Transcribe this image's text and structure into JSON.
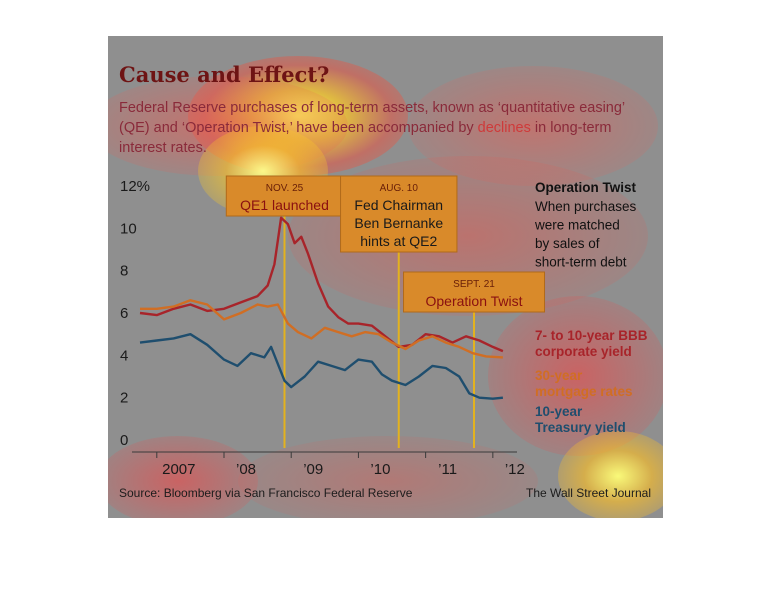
{
  "header": {
    "title": "Cause and Effect?",
    "subtitle_pre": "Federal Reserve purchases of long-term assets, known as ‘quantitative easing’ (QE) and ‘Operation Twist,’ have been accompanied by ",
    "subtitle_highlight": "declines",
    "subtitle_post": " in long-term interest rates."
  },
  "note": {
    "heading": "Operation Twist",
    "lines": [
      "When purchases",
      "were matched",
      "by sales of",
      "short-term debt"
    ]
  },
  "footer": {
    "source": "Source: Bloomberg via San Francisco Federal Reserve",
    "credit": "The Wall Street Journal"
  },
  "colors": {
    "corporate": "#a8242a",
    "mortgage": "#d06e24",
    "treasury": "#1f4e6e",
    "event_line": "#e3b21e"
  },
  "heatmap_overlay": true,
  "chart_data": {
    "type": "line",
    "ylim": [
      0,
      12
    ],
    "y_ticks": [
      0,
      2,
      4,
      6,
      8,
      10,
      12
    ],
    "y_tick_labels": [
      "0",
      "2",
      "4",
      "6",
      "8",
      "10",
      "12%"
    ],
    "xlim": [
      2006.75,
      2012.3
    ],
    "x_ticks": [
      2007.0,
      2008.0,
      2009.0,
      2010.0,
      2011.0,
      2012.0
    ],
    "x_tick_labels": [
      "2007",
      "’08",
      "’09",
      "’10",
      "’11",
      "’12"
    ],
    "series": [
      {
        "name": "7- to 10-year BBB corporate yield",
        "label_lines": [
          "7- to 10-year BBB",
          "corporate yield"
        ],
        "color_key": "corporate",
        "x": [
          2006.75,
          2007.0,
          2007.25,
          2007.5,
          2007.75,
          2008.0,
          2008.25,
          2008.5,
          2008.65,
          2008.75,
          2008.85,
          2008.95,
          2009.05,
          2009.15,
          2009.25,
          2009.4,
          2009.55,
          2009.7,
          2009.85,
          2010.0,
          2010.2,
          2010.4,
          2010.6,
          2010.8,
          2011.0,
          2011.2,
          2011.4,
          2011.6,
          2011.8,
          2012.0,
          2012.15
        ],
        "values": [
          6.0,
          5.9,
          6.2,
          6.4,
          6.1,
          6.2,
          6.5,
          6.8,
          7.3,
          8.3,
          10.5,
          10.2,
          9.3,
          9.6,
          8.8,
          7.4,
          6.3,
          5.8,
          5.5,
          5.5,
          5.4,
          4.9,
          4.4,
          4.5,
          5.0,
          4.9,
          4.6,
          4.9,
          4.7,
          4.4,
          4.2
        ]
      },
      {
        "name": "30-year mortgage rates",
        "label_lines": [
          "30-year",
          "mortgage rates"
        ],
        "color_key": "mortgage",
        "x": [
          2006.75,
          2007.0,
          2007.25,
          2007.5,
          2007.75,
          2008.0,
          2008.25,
          2008.5,
          2008.65,
          2008.8,
          2008.95,
          2009.1,
          2009.3,
          2009.5,
          2009.7,
          2009.9,
          2010.1,
          2010.3,
          2010.5,
          2010.7,
          2010.9,
          2011.1,
          2011.3,
          2011.5,
          2011.7,
          2011.9,
          2012.15
        ],
        "values": [
          6.2,
          6.2,
          6.3,
          6.6,
          6.4,
          5.7,
          6.0,
          6.4,
          6.3,
          6.4,
          5.5,
          5.1,
          4.8,
          5.3,
          5.1,
          4.9,
          5.1,
          5.0,
          4.6,
          4.3,
          4.7,
          4.9,
          4.6,
          4.4,
          4.1,
          3.95,
          3.9
        ]
      },
      {
        "name": "10-year Treasury yield",
        "label_lines": [
          "10-year",
          "Treasury yield"
        ],
        "color_key": "treasury",
        "x": [
          2006.75,
          2007.0,
          2007.25,
          2007.5,
          2007.75,
          2008.0,
          2008.2,
          2008.4,
          2008.6,
          2008.7,
          2008.8,
          2008.9,
          2009.0,
          2009.2,
          2009.4,
          2009.6,
          2009.8,
          2010.0,
          2010.2,
          2010.35,
          2010.5,
          2010.7,
          2010.9,
          2011.1,
          2011.3,
          2011.5,
          2011.65,
          2011.8,
          2012.0,
          2012.15
        ],
        "values": [
          4.6,
          4.7,
          4.8,
          5.0,
          4.5,
          3.8,
          3.5,
          4.1,
          3.9,
          4.4,
          3.6,
          2.8,
          2.5,
          3.0,
          3.7,
          3.5,
          3.3,
          3.8,
          3.7,
          3.1,
          2.8,
          2.6,
          3.0,
          3.5,
          3.4,
          3.0,
          2.2,
          2.0,
          1.95,
          2.0
        ]
      }
    ],
    "events": [
      {
        "x": 2008.9,
        "date": "NOV. 25",
        "title_lines": [
          "QE1 launched"
        ]
      },
      {
        "x": 2010.6,
        "date": "AUG. 10",
        "title_lines": [
          "Fed Chairman",
          "Ben Bernanke",
          "hints at QE2"
        ]
      },
      {
        "x": 2011.72,
        "date": "SEPT. 21",
        "title_lines": [
          "Operation Twist"
        ]
      }
    ],
    "grid": false,
    "legend": "inline-right"
  }
}
